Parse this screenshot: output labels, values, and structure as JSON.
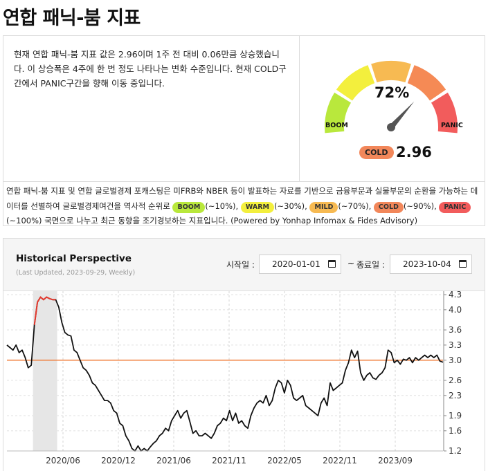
{
  "page": {
    "title": "연합 패닉-붐 지표"
  },
  "summary": {
    "text": "현재 연합 패닉-붐 지표 값은 2.96이며 1주 전 대비 0.06만큼 상승했습니다. 이 상승폭은 4주에 한 번 정도 나타나는 변화 수준입니다. 현재 COLD구간에서 PANIC구간을 향해 이동 중입니다."
  },
  "gauge": {
    "percent": 0.72,
    "percent_label": "72%",
    "left_label": "BOOM",
    "right_label": "PANIC",
    "status": "COLD",
    "value": "2.96",
    "segment_colors": [
      "#b9e83c",
      "#f3ef3d",
      "#f7ba52",
      "#f58a55",
      "#f25c5c"
    ]
  },
  "footnote": {
    "part1": "연합 패닉-붐 지표 및 연합 글로벌경제 포캐스팅은 미FRB와 NBER 등이 발표하는 자료를 기반으로 금융부문과 실물부문의 순환을 가능하는 데이터를 선별하여 글로벌경제여건을 역사적 순위로 ",
    "boom": "BOOM",
    "boom_range": "(~10%), ",
    "warm": "WARM",
    "warm_range": "(~30%), ",
    "mild": "MILD",
    "mild_range": "(~70%), ",
    "cold": "COLD",
    "cold_range": "(~90%),",
    "panic": "PANIC",
    "panic_range": "(~100%) 국면으로 나누고 최근 동향을 조기경보하는 지표입니다. (Powered by Yonhap Infomax & Fides Advisory)"
  },
  "history": {
    "title": "Historical Perspective",
    "subtitle": "(Last Updated, 2023-09-29, Weekly)",
    "start_label": "시작일 :",
    "start_date": "2020-01-01",
    "end_label": "종료일 :",
    "end_date": "2023-10-04",
    "tilde": "~"
  },
  "chart_data": {
    "type": "line",
    "x_tick_labels": [
      "2020/06",
      "2020/12",
      "2021/06",
      "2021/11",
      "2022/05",
      "2022/11",
      "2023/09"
    ],
    "y_ticks": [
      1.2,
      1.6,
      1.9,
      2.3,
      2.6,
      3.0,
      3.3,
      3.6,
      4.0,
      4.3
    ],
    "ylim": [
      1.2,
      4.3
    ],
    "reference_line": 3.0,
    "colors": {
      "line": "#111111",
      "reference": "#f07f3c",
      "peak": "#e53a2f",
      "shade": "#e6e6e6"
    },
    "series": [
      {
        "values": [
          3.3,
          3.25,
          3.2,
          3.3,
          3.15,
          3.2,
          3.05,
          2.85,
          2.9,
          3.7,
          4.15,
          4.25,
          4.2,
          4.25,
          4.22,
          4.2,
          4.2,
          4.05,
          3.75,
          3.55,
          3.5,
          3.48,
          3.2,
          3.15,
          3.0,
          2.85,
          2.8,
          2.7,
          2.55,
          2.5,
          2.4,
          2.3,
          2.2,
          2.2,
          2.15,
          2.0,
          1.95,
          1.75,
          1.7,
          1.5,
          1.4,
          1.25,
          1.2,
          1.3,
          1.2,
          1.25,
          1.2,
          1.28,
          1.35,
          1.4,
          1.5,
          1.55,
          1.65,
          1.6,
          1.8,
          1.9,
          2.0,
          1.85,
          1.95,
          2.0,
          1.78,
          1.55,
          1.6,
          1.5,
          1.5,
          1.55,
          1.5,
          1.45,
          1.55,
          1.7,
          1.75,
          1.85,
          1.8,
          2.0,
          1.8,
          1.95,
          1.75,
          1.8,
          1.7,
          1.65,
          1.9,
          2.05,
          2.15,
          2.2,
          2.15,
          2.3,
          2.1,
          2.2,
          2.45,
          2.6,
          2.55,
          2.35,
          2.6,
          2.5,
          2.25,
          2.2,
          2.25,
          2.3,
          2.1,
          2.05,
          2.0,
          1.95,
          1.9,
          2.15,
          2.25,
          2.1,
          2.55,
          2.4,
          2.45,
          2.5,
          2.55,
          2.8,
          2.95,
          3.2,
          3.05,
          3.18,
          2.75,
          2.6,
          2.7,
          2.75,
          2.65,
          2.62,
          2.7,
          2.75,
          2.85,
          3.2,
          3.15,
          2.95,
          3.0,
          2.92,
          3.02,
          3.0,
          3.05,
          2.95,
          3.05,
          3.0,
          3.05,
          3.1,
          3.05,
          3.1,
          3.05,
          3.1,
          2.98,
          2.96
        ]
      }
    ],
    "highlight": {
      "label": "peak",
      "start_index": 9,
      "end_index": 16
    },
    "shaded_region_index": [
      9,
      16
    ]
  }
}
